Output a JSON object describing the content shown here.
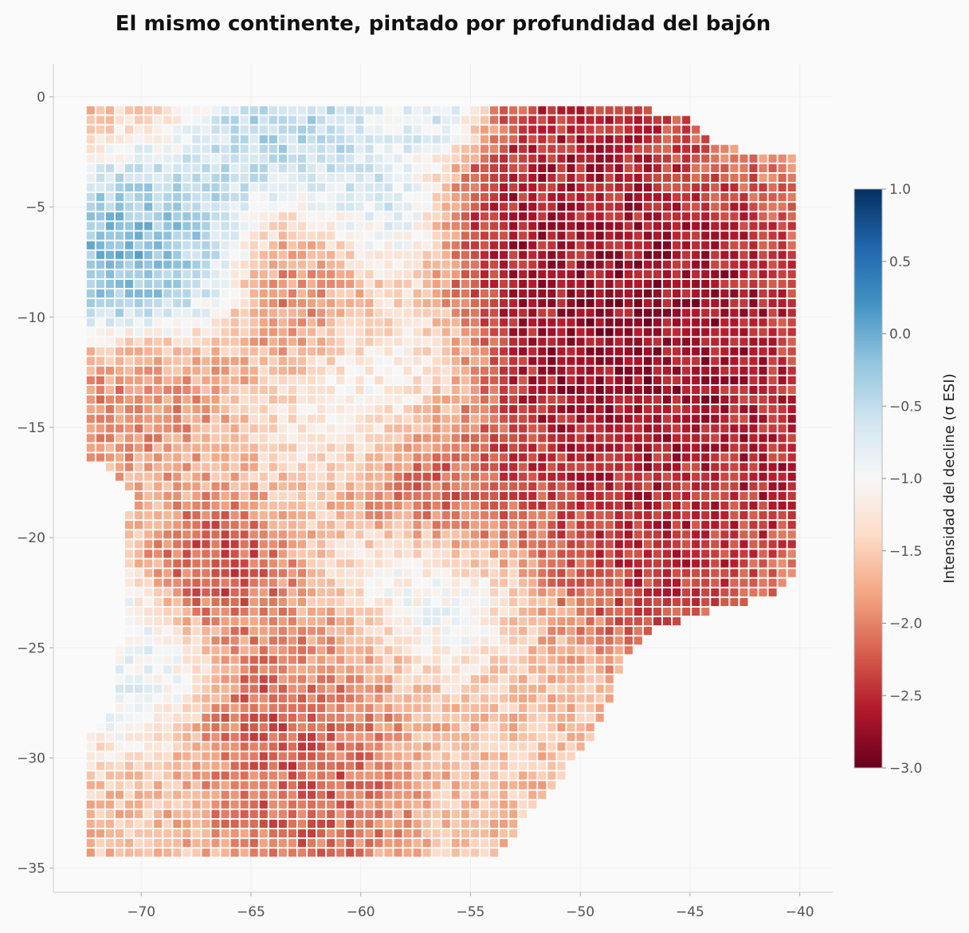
{
  "chart_data": {
    "type": "heatmap",
    "title": "El mismo continente, pintado por profundidad del bajón",
    "xlabel": "",
    "ylabel": "",
    "x_range": [
      -74,
      -38.5
    ],
    "y_range": [
      -36.1,
      1.5
    ],
    "x_ticks": [
      -70,
      -65,
      -60,
      -55,
      -50,
      -45,
      -40
    ],
    "x_tick_labels": [
      "−70",
      "−65",
      "−60",
      "−55",
      "−50",
      "−45",
      "−40"
    ],
    "y_ticks": [
      0,
      -5,
      -10,
      -15,
      -20,
      -25,
      -30,
      -35
    ],
    "y_tick_labels": [
      "0",
      "−5",
      "−10",
      "−15",
      "−20",
      "−25",
      "−30",
      "−35"
    ],
    "grid": true,
    "grid_step_deg": 0.4375,
    "colorbar": {
      "label": "Intensidad del decline (σ ESI)",
      "range": [
        -3.0,
        1.0
      ],
      "ticks": [
        1.0,
        0.5,
        0.0,
        -0.5,
        -1.0,
        -1.5,
        -2.0,
        -2.5,
        -3.0
      ],
      "tick_labels": [
        "1.0",
        "0.5",
        "0.0",
        "−0.5",
        "−1.0",
        "−1.5",
        "−2.0",
        "−2.5",
        "−3.0"
      ],
      "colormap": "RdBu"
    },
    "region_outline_lon_lat": [
      [
        -72.3,
        -0.3
      ],
      [
        -64.0,
        -0.2
      ],
      [
        -55.0,
        -0.1
      ],
      [
        -52.0,
        -0.2
      ],
      [
        -49.5,
        -0.3
      ],
      [
        -47.0,
        -0.5
      ],
      [
        -45.0,
        -1.0
      ],
      [
        -44.5,
        -1.8
      ],
      [
        -42.5,
        -2.4
      ],
      [
        -41.3,
        -2.7
      ],
      [
        -40.0,
        -2.8
      ],
      [
        -40.0,
        -21.3
      ],
      [
        -41.0,
        -22.5
      ],
      [
        -42.5,
        -23.0
      ],
      [
        -44.5,
        -23.5
      ],
      [
        -46.5,
        -24.2
      ],
      [
        -48.0,
        -25.6
      ],
      [
        -48.5,
        -26.5
      ],
      [
        -48.8,
        -28.0
      ],
      [
        -49.5,
        -29.0
      ],
      [
        -50.3,
        -30.0
      ],
      [
        -51.0,
        -31.0
      ],
      [
        -51.8,
        -32.0
      ],
      [
        -52.7,
        -33.0
      ],
      [
        -53.5,
        -34.3
      ],
      [
        -72.3,
        -34.3
      ],
      [
        -72.3,
        -29.0
      ],
      [
        -71.2,
        -27.8
      ],
      [
        -71.0,
        -25.0
      ],
      [
        -70.6,
        -23.0
      ],
      [
        -70.6,
        -22.0
      ],
      [
        -70.8,
        -21.0
      ],
      [
        -70.7,
        -19.0
      ],
      [
        -70.3,
        -18.0
      ],
      [
        -71.5,
        -17.0
      ],
      [
        -72.3,
        -16.5
      ]
    ],
    "anomaly_centers": [
      {
        "lon": -47.5,
        "lat": -11.0,
        "value": -2.95,
        "spread_deg": 4.5
      },
      {
        "lon": -52.0,
        "lat": -4.5,
        "value": -2.7,
        "spread_deg": 2.5
      },
      {
        "lon": -49.0,
        "lat": -1.5,
        "value": -2.6,
        "spread_deg": 1.8
      },
      {
        "lon": -45.5,
        "lat": -20.5,
        "value": -2.6,
        "spread_deg": 2.5
      },
      {
        "lon": -40.5,
        "lat": -17.0,
        "value": -2.7,
        "spread_deg": 1.5
      },
      {
        "lon": -62.5,
        "lat": -8.5,
        "value": -2.2,
        "spread_deg": 2.2
      },
      {
        "lon": -56.5,
        "lat": -17.5,
        "value": -2.4,
        "spread_deg": 2.2
      },
      {
        "lon": -66.5,
        "lat": -21.5,
        "value": -2.4,
        "spread_deg": 1.6
      },
      {
        "lon": -70.0,
        "lat": -13.5,
        "value": -2.0,
        "spread_deg": 2.0
      },
      {
        "lon": -62.5,
        "lat": -31.5,
        "value": -2.3,
        "spread_deg": 2.2
      },
      {
        "lon": -64.0,
        "lat": -28.0,
        "value": -2.3,
        "spread_deg": 1.5
      },
      {
        "lon": -61.0,
        "lat": -25.5,
        "value": -2.0,
        "spread_deg": 2.0
      },
      {
        "lon": -71.0,
        "lat": -7.5,
        "value": 0.2,
        "spread_deg": 2.0
      },
      {
        "lon": -68.0,
        "lat": -6.5,
        "value": -0.2,
        "spread_deg": 2.2
      },
      {
        "lon": -63.5,
        "lat": -1.5,
        "value": -0.2,
        "spread_deg": 2.0
      },
      {
        "lon": -59.5,
        "lat": -5.0,
        "value": -0.4,
        "spread_deg": 2.0
      },
      {
        "lon": -56.5,
        "lat": -1.0,
        "value": -0.4,
        "spread_deg": 1.3
      },
      {
        "lon": -57.5,
        "lat": -22.5,
        "value": -0.7,
        "spread_deg": 2.0
      },
      {
        "lon": -59.0,
        "lat": -13.0,
        "value": -0.9,
        "spread_deg": 2.5
      },
      {
        "lon": -71.0,
        "lat": -25.5,
        "value": -0.7,
        "spread_deg": 2.0
      }
    ],
    "background_value": -1.6
  }
}
